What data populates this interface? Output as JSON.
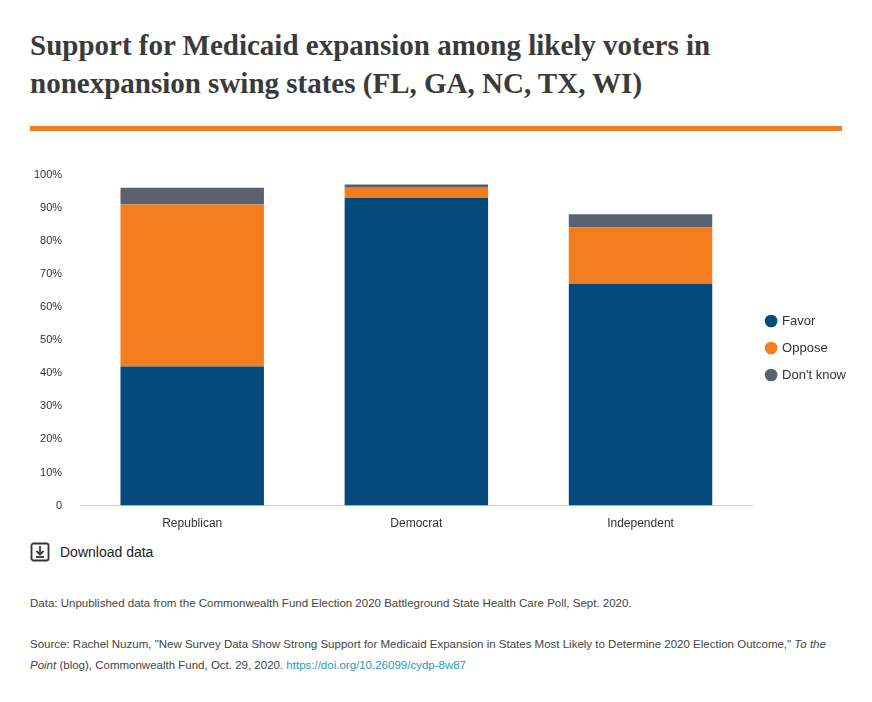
{
  "chart_data": {
    "type": "bar",
    "title": "Support for Medicaid expansion among likely voters in nonexpansion swing states (FL, GA, NC, TX, WI)",
    "categories": [
      "Republican",
      "Democrat",
      "Independent"
    ],
    "series": [
      {
        "name": "Favor",
        "color": "#054a7d",
        "values": [
          42,
          93,
          67
        ]
      },
      {
        "name": "Oppose",
        "color": "#f47d20",
        "values": [
          49,
          3,
          17
        ]
      },
      {
        "name": "Don't know",
        "color": "#5c616e",
        "values": [
          5,
          1,
          4
        ]
      }
    ],
    "ylim": [
      0,
      100
    ],
    "yticks": [
      0,
      {
        "value": 10,
        "label": "10%"
      },
      {
        "value": 20,
        "label": "20%"
      },
      {
        "value": 30,
        "label": "30%"
      },
      {
        "value": 40,
        "label": "40%"
      },
      {
        "value": 50,
        "label": "50%"
      },
      {
        "value": 60,
        "label": "60%"
      },
      {
        "value": 70,
        "label": "70%"
      },
      {
        "value": 80,
        "label": "80%"
      },
      {
        "value": 90,
        "label": "90%"
      },
      {
        "value": 100,
        "label": "100%"
      }
    ],
    "stacked": true,
    "grid": false,
    "legend": "right"
  },
  "download_label": "Download data",
  "data_note": "Data: Unpublished data  from the Commonwealth Fund Election 2020 Battleground State Health Care Poll, Sept. 2020.",
  "source_prefix": "Source:  Rachel Nuzum, \"New Survey Data Show Strong Support for Medicaid Expansion in States Most Likely to Determine 2020 Election Outcome,\" ",
  "source_italic": "To the Point",
  "source_suffix": " (blog), Commonwealth Fund, Oct. 29, 2020. ",
  "source_link": "https://doi.org/10.26099/cydp-8w87"
}
